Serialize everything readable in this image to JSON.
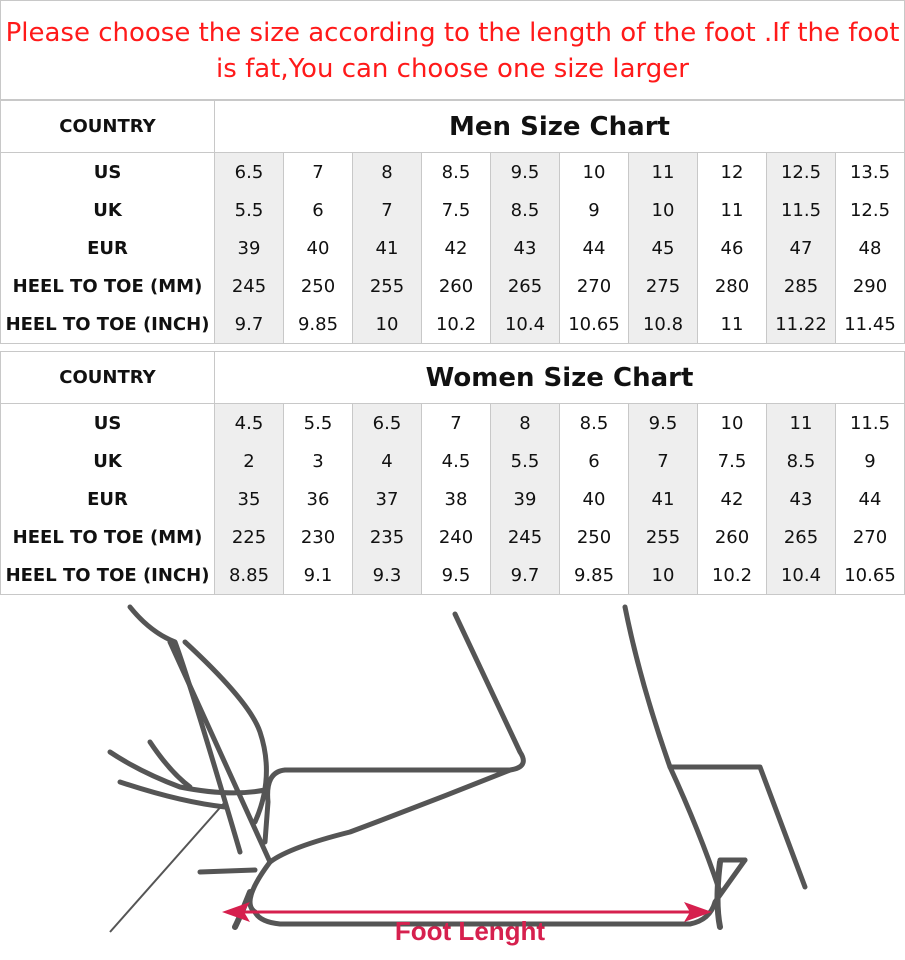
{
  "notice": "Please choose the size according to the length of the foot .If the foot is fat,You can choose one size larger",
  "colors": {
    "notice": "#ff1a1a",
    "shade": "#eeeeee",
    "arrow": "#d6204e",
    "drawing": "#555555"
  },
  "men": {
    "country_label": "COUNTRY",
    "title": "Men Size Chart",
    "rows": [
      {
        "label": "US",
        "values": [
          "6.5",
          "7",
          "8",
          "8.5",
          "9.5",
          "10",
          "11",
          "12",
          "12.5",
          "13.5"
        ]
      },
      {
        "label": "UK",
        "values": [
          "5.5",
          "6",
          "7",
          "7.5",
          "8.5",
          "9",
          "10",
          "11",
          "11.5",
          "12.5"
        ]
      },
      {
        "label": "EUR",
        "values": [
          "39",
          "40",
          "41",
          "42",
          "43",
          "44",
          "45",
          "46",
          "47",
          "48"
        ]
      },
      {
        "label": "HEEL TO TOE (MM)",
        "values": [
          "245",
          "250",
          "255",
          "260",
          "265",
          "270",
          "275",
          "280",
          "285",
          "290"
        ]
      },
      {
        "label": "HEEL TO TOE (INCH)",
        "values": [
          "9.7",
          "9.85",
          "10",
          "10.2",
          "10.4",
          "10.65",
          "10.8",
          "11",
          "11.22",
          "11.45"
        ]
      }
    ]
  },
  "women": {
    "country_label": "COUNTRY",
    "title": "Women Size Chart",
    "rows": [
      {
        "label": "US",
        "values": [
          "4.5",
          "5.5",
          "6.5",
          "7",
          "8",
          "8.5",
          "9.5",
          "10",
          "11",
          "11.5"
        ]
      },
      {
        "label": "UK",
        "values": [
          "2",
          "3",
          "4",
          "4.5",
          "5.5",
          "6",
          "7",
          "7.5",
          "8.5",
          "9"
        ]
      },
      {
        "label": "EUR",
        "values": [
          "35",
          "36",
          "37",
          "38",
          "39",
          "40",
          "41",
          "42",
          "43",
          "44"
        ]
      },
      {
        "label": "HEEL TO TOE (MM)",
        "values": [
          "225",
          "230",
          "235",
          "240",
          "245",
          "250",
          "255",
          "260",
          "265",
          "270"
        ]
      },
      {
        "label": "HEEL TO TOE (INCH)",
        "values": [
          "8.85",
          "9.1",
          "9.3",
          "9.5",
          "9.7",
          "9.85",
          "10",
          "10.2",
          "10.4",
          "10.65"
        ]
      }
    ]
  },
  "illustration": {
    "caption": "Foot Lenght"
  }
}
